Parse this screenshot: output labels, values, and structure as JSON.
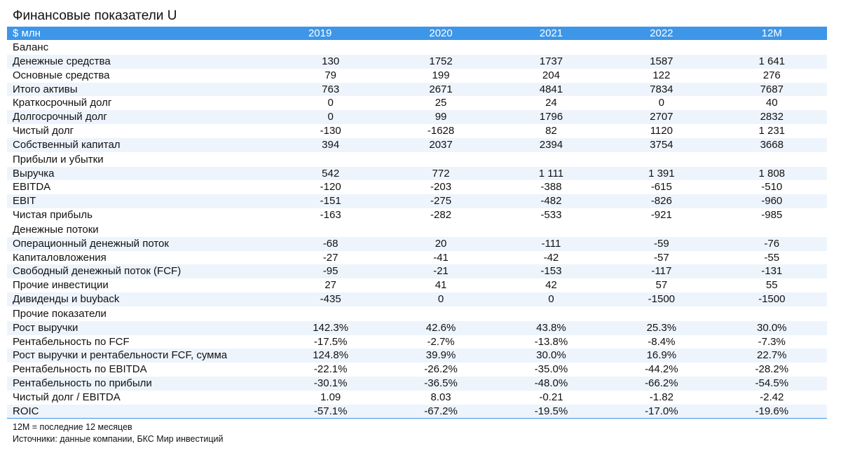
{
  "title": "Финансовые показатели U",
  "header": {
    "unit": "$ млн",
    "years": [
      "2019",
      "2020",
      "2021",
      "2022",
      "12M"
    ]
  },
  "rows": [
    {
      "kind": "section",
      "label": "Баланс"
    },
    {
      "kind": "data",
      "label": "Денежные средства",
      "values": [
        "130",
        "1752",
        "1737",
        "1587",
        "1 641"
      ]
    },
    {
      "kind": "data",
      "label": "Основные средства",
      "values": [
        "79",
        "199",
        "204",
        "122",
        "276"
      ]
    },
    {
      "kind": "data",
      "label": "Итого активы",
      "values": [
        "763",
        "2671",
        "4841",
        "7834",
        "7687"
      ]
    },
    {
      "kind": "data",
      "label": "Краткосрочный долг",
      "values": [
        "0",
        "25",
        "24",
        "0",
        "40"
      ]
    },
    {
      "kind": "data",
      "label": "Долгосрочный долг",
      "values": [
        "0",
        "99",
        "1796",
        "2707",
        "2832"
      ]
    },
    {
      "kind": "data",
      "label": "Чистый долг",
      "values": [
        "-130",
        "-1628",
        "82",
        "1120",
        "1 231"
      ]
    },
    {
      "kind": "data",
      "label": "Собственный капитал",
      "values": [
        "394",
        "2037",
        "2394",
        "3754",
        "3668"
      ]
    },
    {
      "kind": "section",
      "label": "Прибыли и убытки"
    },
    {
      "kind": "data",
      "label": "Выручка",
      "values": [
        "542",
        "772",
        "1 111",
        "1 391",
        "1 808"
      ]
    },
    {
      "kind": "data",
      "label": "EBITDA",
      "values": [
        "-120",
        "-203",
        "-388",
        "-615",
        "-510"
      ]
    },
    {
      "kind": "data",
      "label": "EBIT",
      "values": [
        "-151",
        "-275",
        "-482",
        "-826",
        "-960"
      ]
    },
    {
      "kind": "data",
      "label": "Чистая прибыль",
      "values": [
        "-163",
        "-282",
        "-533",
        "-921",
        "-985"
      ]
    },
    {
      "kind": "section",
      "label": "Денежные потоки"
    },
    {
      "kind": "data",
      "label": "Операционный денежный поток",
      "values": [
        "-68",
        "20",
        "-111",
        "-59",
        "-76"
      ]
    },
    {
      "kind": "data",
      "label": "Капиталовложения",
      "values": [
        "-27",
        "-41",
        "-42",
        "-57",
        "-55"
      ]
    },
    {
      "kind": "data",
      "label": "Свободный денежный поток (FCF)",
      "values": [
        "-95",
        "-21",
        "-153",
        "-117",
        "-131"
      ]
    },
    {
      "kind": "data",
      "label": "Прочие инвестиции",
      "values": [
        "27",
        "41",
        "42",
        "57",
        "55"
      ]
    },
    {
      "kind": "data",
      "label": "Дивиденды и buyback",
      "values": [
        "-435",
        "0",
        "0",
        "-1500",
        "-1500"
      ]
    },
    {
      "kind": "section",
      "label": "Прочие показатели"
    },
    {
      "kind": "data",
      "label": "Рост выручки",
      "values": [
        "142.3%",
        "42.6%",
        "43.8%",
        "25.3%",
        "30.0%"
      ]
    },
    {
      "kind": "data",
      "label": "Рентабельность по FCF",
      "values": [
        "-17.5%",
        "-2.7%",
        "-13.8%",
        "-8.4%",
        "-7.3%"
      ]
    },
    {
      "kind": "data",
      "label": "Рост выручки и рентабельности FCF, сумма",
      "values": [
        "124.8%",
        "39.9%",
        "30.0%",
        "16.9%",
        "22.7%"
      ]
    },
    {
      "kind": "data",
      "label": "Рентабельность по EBITDA",
      "values": [
        "-22.1%",
        "-26.2%",
        "-35.0%",
        "-44.2%",
        "-28.2%"
      ]
    },
    {
      "kind": "data",
      "label": "Рентабельность по прибыли",
      "values": [
        "-30.1%",
        "-36.5%",
        "-48.0%",
        "-66.2%",
        "-54.5%"
      ]
    },
    {
      "kind": "data",
      "label": "Чистый долг / EBITDA",
      "values": [
        "1.09",
        "8.03",
        "-0.21",
        "-1.82",
        "-2.42"
      ]
    },
    {
      "kind": "data",
      "label": "ROIC",
      "values": [
        "-57.1%",
        "-67.2%",
        "-19.5%",
        "-17.0%",
        "-19.6%"
      ]
    }
  ],
  "notes": [
    "12M = последние 12 месяцев",
    "Источники: данные компании, БКС Мир инвестиций"
  ],
  "colors": {
    "header_bg": "#3d96e8",
    "header_text": "#ffffff",
    "band_bg": "#eef4fc"
  }
}
